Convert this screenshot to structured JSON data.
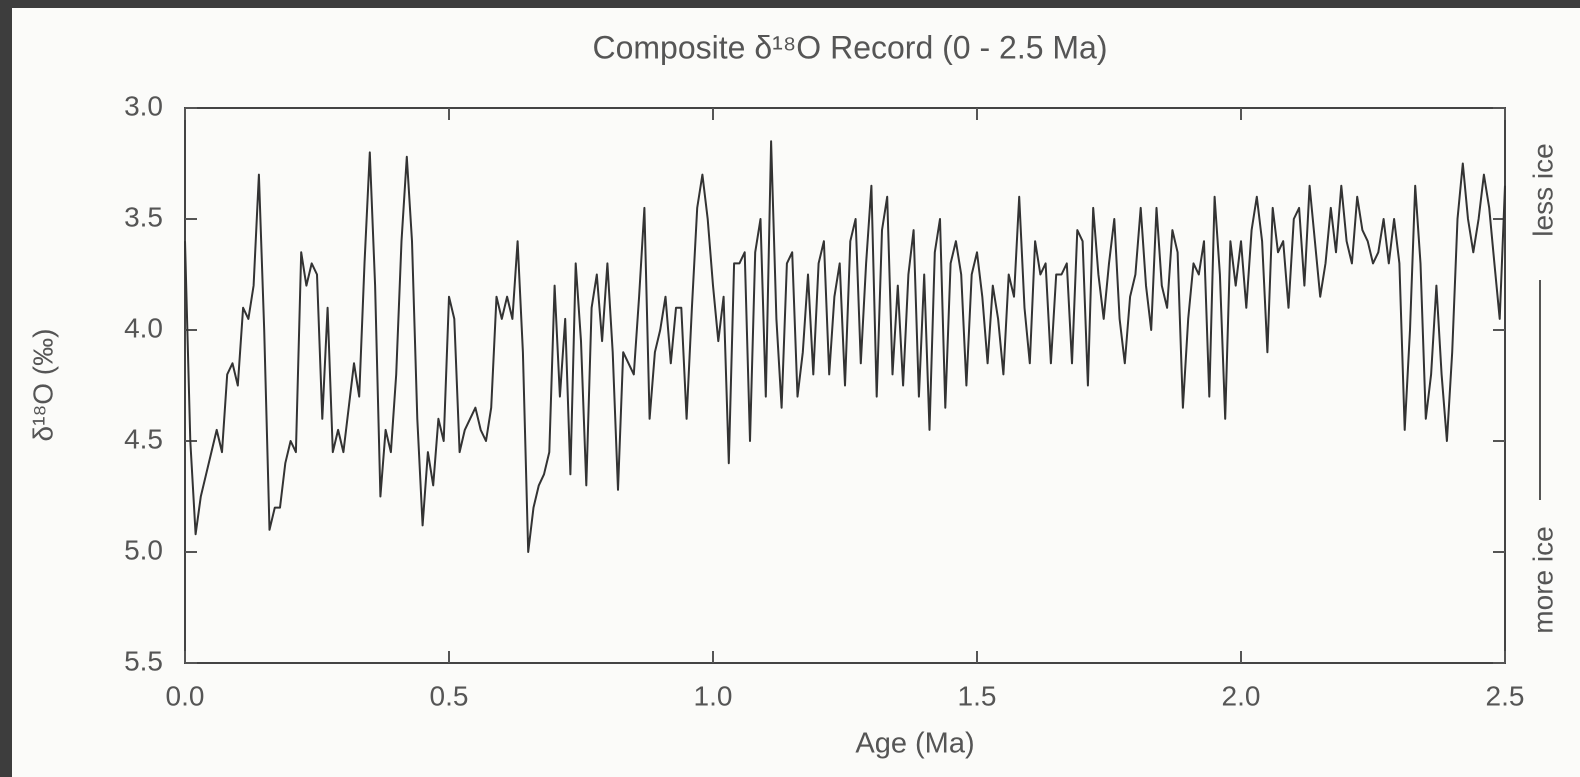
{
  "chart_data": {
    "type": "line",
    "title": "Composite δ¹⁸O Record (0 - 2.5 Ma)",
    "xlabel": "Age (Ma)",
    "ylabel": "δ¹⁸O (‰)",
    "right_top_label": "less ice",
    "right_bottom_label": "more ice",
    "color": "#333333",
    "xlim": [
      0,
      2.5
    ],
    "ylim": [
      5.5,
      3.0
    ],
    "xticks": [
      {
        "value": 0,
        "label": "0.0"
      },
      0.5,
      {
        "value": 1,
        "label": "1.0"
      },
      1.5,
      {
        "value": 2,
        "label": "2.0"
      },
      2.5
    ],
    "yticks": [
      {
        "value": 3,
        "label": "3.0"
      },
      3.5,
      {
        "value": 4,
        "label": "4.0"
      },
      4.5,
      {
        "value": 5,
        "label": "5.0"
      },
      5.5
    ],
    "x": [
      0,
      0.01,
      0.02,
      0.03,
      0.04,
      0.05,
      0.06,
      0.07,
      0.08,
      0.09,
      0.1,
      0.11,
      0.12,
      0.13,
      0.14,
      0.15,
      0.16,
      0.17,
      0.18,
      0.19,
      0.2,
      0.21,
      0.22,
      0.23,
      0.24,
      0.25,
      0.26,
      0.27,
      0.28,
      0.29,
      0.3,
      0.31,
      0.32,
      0.33,
      0.34,
      0.35,
      0.36,
      0.37,
      0.38,
      0.39,
      0.4,
      0.41,
      0.42,
      0.43,
      0.44,
      0.45,
      0.46,
      0.47,
      0.48,
      0.49,
      0.5,
      0.51,
      0.52,
      0.53,
      0.54,
      0.55,
      0.56,
      0.57,
      0.58,
      0.59,
      0.6,
      0.61,
      0.62,
      0.63,
      0.64,
      0.65,
      0.66,
      0.67,
      0.68,
      0.69,
      0.7,
      0.71,
      0.72,
      0.73,
      0.74,
      0.75,
      0.76,
      0.77,
      0.78,
      0.79,
      0.8,
      0.81,
      0.82,
      0.83,
      0.84,
      0.85,
      0.86,
      0.87,
      0.88,
      0.89,
      0.9,
      0.91,
      0.92,
      0.93,
      0.94,
      0.95,
      0.96,
      0.97,
      0.98,
      0.99,
      1,
      1.01,
      1.02,
      1.03,
      1.04,
      1.05,
      1.06,
      1.07,
      1.08,
      1.09,
      1.1,
      1.11,
      1.12,
      1.13,
      1.14,
      1.15,
      1.16,
      1.17,
      1.18,
      1.19,
      1.2,
      1.21,
      1.22,
      1.23,
      1.24,
      1.25,
      1.26,
      1.27,
      1.28,
      1.29,
      1.3,
      1.31,
      1.32,
      1.33,
      1.34,
      1.35,
      1.36,
      1.37,
      1.38,
      1.39,
      1.4,
      1.41,
      1.42,
      1.43,
      1.44,
      1.45,
      1.46,
      1.47,
      1.48,
      1.49,
      1.5,
      1.51,
      1.52,
      1.53,
      1.54,
      1.55,
      1.56,
      1.57,
      1.58,
      1.59,
      1.6,
      1.61,
      1.62,
      1.63,
      1.64,
      1.65,
      1.66,
      1.67,
      1.68,
      1.69,
      1.7,
      1.71,
      1.72,
      1.73,
      1.74,
      1.75,
      1.76,
      1.77,
      1.78,
      1.79,
      1.8,
      1.81,
      1.82,
      1.83,
      1.84,
      1.85,
      1.86,
      1.87,
      1.88,
      1.89,
      1.9,
      1.91,
      1.92,
      1.93,
      1.94,
      1.95,
      1.96,
      1.97,
      1.98,
      1.99,
      2,
      2.01,
      2.02,
      2.03,
      2.04,
      2.05,
      2.06,
      2.07,
      2.08,
      2.09,
      2.1,
      2.11,
      2.12,
      2.13,
      2.14,
      2.15,
      2.16,
      2.17,
      2.18,
      2.19,
      2.2,
      2.21,
      2.22,
      2.23,
      2.24,
      2.25,
      2.26,
      2.27,
      2.28,
      2.29,
      2.3,
      2.31,
      2.32,
      2.33,
      2.34,
      2.35,
      2.36,
      2.37,
      2.38,
      2.39,
      2.4,
      2.41,
      2.42,
      2.43,
      2.44,
      2.45,
      2.46,
      2.47,
      2.48,
      2.49,
      2.5
    ],
    "values": [
      3.6,
      4.5,
      4.92,
      4.75,
      4.65,
      4.55,
      4.45,
      4.55,
      4.2,
      4.15,
      4.25,
      3.9,
      3.95,
      3.8,
      3.3,
      4.0,
      4.9,
      4.8,
      4.8,
      4.6,
      4.5,
      4.55,
      3.65,
      3.8,
      3.7,
      3.75,
      4.4,
      3.9,
      4.55,
      4.45,
      4.55,
      4.35,
      4.15,
      4.3,
      3.7,
      3.2,
      3.8,
      4.75,
      4.45,
      4.55,
      4.2,
      3.6,
      3.22,
      3.6,
      4.4,
      4.88,
      4.55,
      4.7,
      4.4,
      4.5,
      3.85,
      3.95,
      4.55,
      4.45,
      4.4,
      4.35,
      4.45,
      4.5,
      4.35,
      3.85,
      3.95,
      3.85,
      3.95,
      3.6,
      4.1,
      5.0,
      4.8,
      4.7,
      4.65,
      4.55,
      3.8,
      4.3,
      3.95,
      4.65,
      3.7,
      4.05,
      4.7,
      3.9,
      3.75,
      4.05,
      3.7,
      4.1,
      4.72,
      4.1,
      4.15,
      4.2,
      3.85,
      3.45,
      4.4,
      4.1,
      4.0,
      3.85,
      4.15,
      3.9,
      3.9,
      4.4,
      3.9,
      3.45,
      3.3,
      3.5,
      3.8,
      4.05,
      3.85,
      4.6,
      3.7,
      3.7,
      3.65,
      4.5,
      3.65,
      3.5,
      4.3,
      3.15,
      3.95,
      4.35,
      3.7,
      3.65,
      4.3,
      4.1,
      3.75,
      4.2,
      3.7,
      3.6,
      4.2,
      3.85,
      3.7,
      4.25,
      3.6,
      3.5,
      4.15,
      3.7,
      3.35,
      4.3,
      3.55,
      3.4,
      4.2,
      3.8,
      4.25,
      3.75,
      3.55,
      4.3,
      3.75,
      4.45,
      3.65,
      3.5,
      4.35,
      3.7,
      3.6,
      3.75,
      4.25,
      3.75,
      3.65,
      3.85,
      4.15,
      3.8,
      3.95,
      4.2,
      3.75,
      3.85,
      3.4,
      3.9,
      4.15,
      3.6,
      3.75,
      3.7,
      4.15,
      3.75,
      3.75,
      3.7,
      4.15,
      3.55,
      3.6,
      4.25,
      3.45,
      3.75,
      3.95,
      3.7,
      3.5,
      3.95,
      4.15,
      3.85,
      3.75,
      3.45,
      3.8,
      4.0,
      3.45,
      3.8,
      3.9,
      3.55,
      3.65,
      4.35,
      3.95,
      3.7,
      3.75,
      3.6,
      4.3,
      3.4,
      3.75,
      4.4,
      3.6,
      3.8,
      3.6,
      3.9,
      3.55,
      3.4,
      3.6,
      4.1,
      3.45,
      3.65,
      3.6,
      3.9,
      3.5,
      3.45,
      3.8,
      3.35,
      3.6,
      3.85,
      3.7,
      3.45,
      3.65,
      3.35,
      3.6,
      3.7,
      3.4,
      3.55,
      3.6,
      3.7,
      3.65,
      3.5,
      3.7,
      3.5,
      3.7,
      4.45,
      4.0,
      3.35,
      3.7,
      4.4,
      4.2,
      3.8,
      4.2,
      4.5,
      4.1,
      3.5,
      3.25,
      3.5,
      3.65,
      3.5,
      3.3,
      3.45,
      3.7,
      3.95,
      3.35
    ]
  }
}
